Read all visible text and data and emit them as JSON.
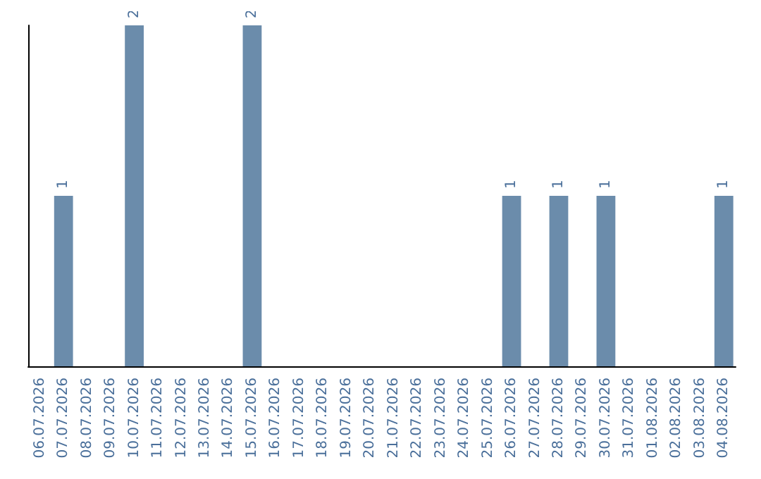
{
  "chart_data": {
    "type": "bar",
    "categories": [
      "06.07.2026",
      "07.07.2026",
      "08.07.2026",
      "09.07.2026",
      "10.07.2026",
      "11.07.2026",
      "12.07.2026",
      "13.07.2026",
      "14.07.2026",
      "15.07.2026",
      "16.07.2026",
      "17.07.2026",
      "18.07.2026",
      "19.07.2026",
      "20.07.2026",
      "21.07.2026",
      "22.07.2026",
      "23.07.2026",
      "24.07.2026",
      "25.07.2026",
      "26.07.2026",
      "27.07.2026",
      "28.07.2026",
      "29.07.2026",
      "30.07.2026",
      "31.07.2026",
      "01.08.2026",
      "02.08.2026",
      "03.08.2026",
      "04.08.2026"
    ],
    "values": [
      0,
      1,
      0,
      0,
      2,
      0,
      0,
      0,
      0,
      2,
      0,
      0,
      0,
      0,
      0,
      0,
      0,
      0,
      0,
      0,
      1,
      0,
      1,
      0,
      1,
      0,
      0,
      0,
      0,
      1
    ],
    "value_labels": [
      null,
      "1",
      null,
      null,
      "2",
      null,
      null,
      null,
      null,
      "2",
      null,
      null,
      null,
      null,
      null,
      null,
      null,
      null,
      null,
      null,
      "1",
      null,
      "1",
      null,
      "1",
      null,
      null,
      null,
      null,
      "1"
    ],
    "color": "#6b8cab",
    "grid": false
  }
}
